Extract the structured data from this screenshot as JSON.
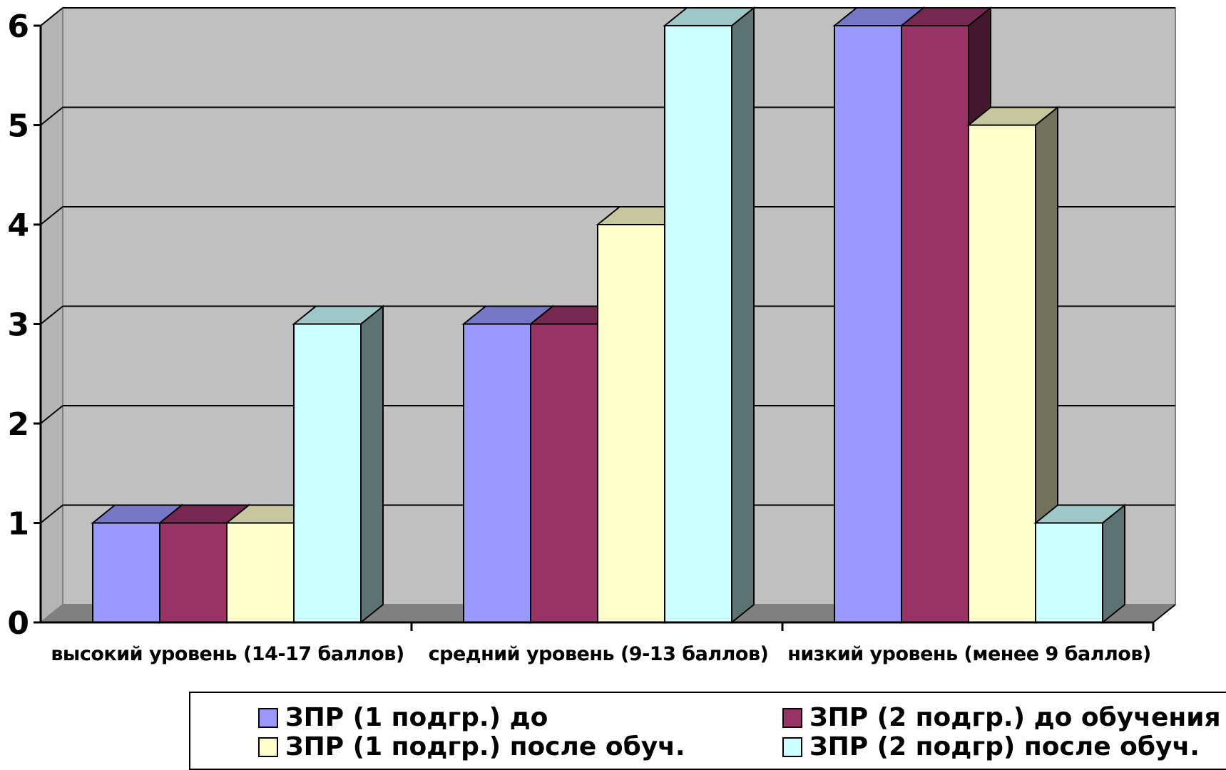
{
  "chart_data": {
    "type": "bar",
    "categories": [
      "высокий уровень (14-17  баллов)",
      "средний уровень (9-13 баллов)",
      "низкий уровень (менее 9 баллов)"
    ],
    "series": [
      {
        "name": "ЗПР (1 подгр.) до",
        "values": [
          1,
          3,
          6
        ],
        "color": "#9999FF"
      },
      {
        "name": "ЗПР (2 подгр.) до обучения",
        "values": [
          1,
          3,
          6
        ],
        "color": "#993366"
      },
      {
        "name": "ЗПР (1 подгр.) после обуч.",
        "values": [
          1,
          4,
          5
        ],
        "color": "#FFFFCC"
      },
      {
        "name": "ЗПР (2 подгр) после обуч.",
        "values": [
          3,
          6,
          1
        ],
        "color": "#CCFFFF"
      }
    ],
    "yticks": [
      "0",
      "1",
      "2",
      "3",
      "4",
      "5",
      "6"
    ],
    "ylim": [
      0,
      6
    ],
    "grid": true,
    "legend_position": "bottom",
    "wall_color": "#C0C0C0",
    "floor_color": "#808080"
  },
  "legend": {
    "items": [
      {
        "label": "ЗПР (1 подгр.) до",
        "color": "#9999FF"
      },
      {
        "label": "ЗПР (2 подгр.) до обучения",
        "color": "#993366"
      },
      {
        "label": "ЗПР (1 подгр.) после обуч.",
        "color": "#FFFFCC"
      },
      {
        "label": "ЗПР (2 подгр) после обуч.",
        "color": "#CCFFFF"
      }
    ]
  }
}
